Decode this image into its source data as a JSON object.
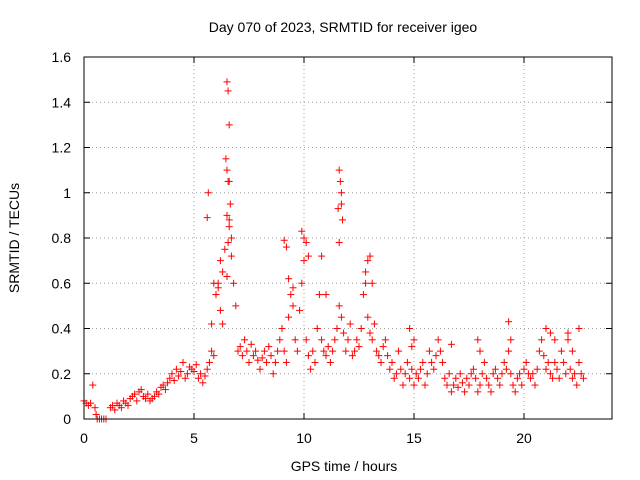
{
  "chart_data": {
    "type": "scatter",
    "title": "Day 070 of 2023, SRMTID for receiver igeo",
    "xlabel": "GPS time / hours",
    "ylabel": "SRMTID / TECUs",
    "xlim": [
      0,
      24
    ],
    "ylim": [
      0,
      1.6
    ],
    "xticks": [
      0,
      5,
      10,
      15,
      20
    ],
    "xtick_labels": [
      "0",
      "5",
      "10",
      "15",
      "20"
    ],
    "yticks": [
      0,
      0.2,
      0.4,
      0.6,
      0.8,
      1,
      1.2,
      1.4,
      1.6
    ],
    "ytick_labels": [
      "0",
      "0.2",
      "0.4",
      "0.6",
      "0.8",
      "1",
      "1.2",
      "1.4",
      "1.6"
    ],
    "grid": true,
    "marker": "+",
    "color": "#ff0000",
    "series": [
      {
        "name": "SRMTID",
        "x": [
          0.0,
          0.1,
          0.2,
          0.3,
          0.4,
          0.5,
          0.55,
          0.6,
          0.7,
          0.8,
          0.9,
          1.0,
          1.2,
          1.3,
          1.4,
          1.5,
          1.6,
          1.7,
          1.8,
          1.9,
          2.0,
          2.1,
          2.2,
          2.3,
          2.4,
          2.5,
          2.6,
          2.7,
          2.8,
          2.9,
          3.0,
          3.1,
          3.2,
          3.3,
          3.4,
          3.5,
          3.6,
          3.7,
          3.8,
          3.9,
          4.0,
          4.1,
          4.2,
          4.3,
          4.4,
          4.5,
          4.6,
          4.7,
          4.8,
          4.9,
          5.0,
          5.1,
          5.2,
          5.3,
          5.4,
          5.5,
          5.6,
          5.7,
          5.8,
          5.9,
          6.0,
          6.1,
          6.2,
          6.3,
          6.4,
          6.5,
          6.55,
          6.6,
          6.7,
          6.8,
          6.9,
          7.0,
          7.1,
          7.2,
          7.3,
          7.4,
          7.5,
          7.6,
          7.7,
          7.8,
          7.9,
          8.0,
          8.1,
          8.2,
          8.3,
          8.4,
          8.5,
          8.6,
          8.7,
          8.8,
          8.9,
          9.0,
          9.1,
          9.2,
          9.3,
          9.4,
          9.5,
          9.6,
          9.7,
          9.8,
          9.9,
          10.0,
          10.1,
          10.2,
          10.3,
          10.4,
          10.5,
          10.6,
          10.7,
          10.8,
          10.9,
          11.0,
          11.1,
          11.2,
          11.3,
          11.4,
          11.5,
          11.6,
          11.7,
          11.8,
          11.9,
          12.0,
          12.1,
          12.2,
          12.3,
          12.4,
          12.5,
          12.6,
          12.7,
          12.8,
          12.9,
          13.0,
          13.1,
          13.2,
          13.3,
          13.4,
          13.5,
          13.6,
          13.7,
          13.8,
          13.9,
          14.0,
          14.1,
          14.2,
          14.3,
          14.4,
          14.5,
          14.6,
          14.7,
          14.8,
          14.9,
          15.0,
          15.1,
          15.2,
          15.3,
          15.4,
          15.5,
          15.6,
          15.7,
          15.8,
          15.9,
          16.0,
          16.1,
          16.2,
          16.3,
          16.4,
          16.5,
          16.6,
          16.7,
          16.8,
          16.9,
          17.0,
          17.1,
          17.2,
          17.3,
          17.4,
          17.5,
          17.6,
          17.7,
          17.8,
          17.9,
          18.0,
          18.1,
          18.2,
          18.3,
          18.4,
          18.5,
          18.6,
          18.7,
          18.8,
          18.9,
          19.0,
          19.1,
          19.2,
          19.3,
          19.4,
          19.5,
          19.6,
          19.7,
          19.8,
          19.9,
          20.0,
          20.1,
          20.2,
          20.3,
          20.4,
          20.5,
          20.6,
          20.7,
          20.8,
          20.9,
          21.0,
          21.1,
          21.2,
          21.3,
          21.4,
          21.5,
          21.6,
          21.7,
          21.8,
          21.9,
          22.0,
          22.1,
          22.2,
          22.3,
          22.4,
          22.5,
          22.6,
          22.7,
          6.5,
          6.55,
          6.6,
          6.45,
          6.5,
          6.6,
          6.65,
          6.6,
          6.55,
          6.7,
          6.5,
          5.6,
          5.65,
          5.8,
          5.9,
          6.0,
          6.1,
          6.2,
          6.3,
          11.6,
          11.65,
          11.7,
          11.55,
          11.7,
          11.6,
          11.75,
          9.9,
          10.0,
          10.1,
          10.2,
          9.1,
          9.2,
          9.3,
          9.5,
          10.8,
          11.0,
          12.9,
          13.0,
          13.1,
          12.8,
          21.0,
          21.2,
          21.4,
          22.0,
          22.2,
          22.5,
          19.3,
          19.4,
          17.9,
          18.0,
          16.7,
          14.8,
          14.9,
          15.0
        ],
        "y": [
          0.08,
          0.07,
          0.06,
          0.07,
          0.15,
          0.05,
          0.02,
          0.0,
          0.0,
          0.0,
          0.0,
          0.0,
          0.05,
          0.06,
          0.04,
          0.07,
          0.06,
          0.05,
          0.08,
          0.07,
          0.06,
          0.09,
          0.1,
          0.11,
          0.08,
          0.12,
          0.13,
          0.1,
          0.09,
          0.11,
          0.08,
          0.09,
          0.1,
          0.12,
          0.11,
          0.14,
          0.15,
          0.13,
          0.16,
          0.18,
          0.2,
          0.17,
          0.22,
          0.19,
          0.21,
          0.25,
          0.18,
          0.2,
          0.23,
          0.22,
          0.21,
          0.24,
          0.18,
          0.2,
          0.16,
          0.19,
          0.22,
          0.25,
          0.3,
          0.28,
          0.55,
          0.6,
          0.7,
          0.65,
          0.75,
          0.9,
          1.05,
          0.85,
          0.8,
          0.6,
          0.5,
          0.3,
          0.32,
          0.28,
          0.35,
          0.3,
          0.25,
          0.33,
          0.28,
          0.3,
          0.26,
          0.22,
          0.27,
          0.3,
          0.25,
          0.32,
          0.28,
          0.2,
          0.25,
          0.3,
          0.35,
          0.4,
          0.3,
          0.25,
          0.45,
          0.55,
          0.5,
          0.35,
          0.3,
          0.48,
          0.6,
          0.7,
          0.35,
          0.28,
          0.22,
          0.3,
          0.25,
          0.4,
          0.55,
          0.35,
          0.3,
          0.28,
          0.32,
          0.25,
          0.3,
          0.35,
          0.4,
          0.5,
          0.45,
          0.38,
          0.3,
          0.35,
          0.42,
          0.28,
          0.3,
          0.35,
          0.32,
          0.4,
          0.55,
          0.6,
          0.45,
          0.38,
          0.35,
          0.42,
          0.3,
          0.28,
          0.25,
          0.32,
          0.35,
          0.28,
          0.22,
          0.25,
          0.18,
          0.2,
          0.3,
          0.22,
          0.15,
          0.2,
          0.25,
          0.18,
          0.22,
          0.15,
          0.2,
          0.18,
          0.22,
          0.25,
          0.15,
          0.2,
          0.3,
          0.25,
          0.22,
          0.28,
          0.35,
          0.3,
          0.25,
          0.18,
          0.15,
          0.2,
          0.12,
          0.15,
          0.18,
          0.14,
          0.2,
          0.16,
          0.12,
          0.18,
          0.15,
          0.2,
          0.22,
          0.18,
          0.12,
          0.15,
          0.2,
          0.25,
          0.18,
          0.15,
          0.12,
          0.2,
          0.22,
          0.18,
          0.15,
          0.2,
          0.25,
          0.22,
          0.3,
          0.2,
          0.15,
          0.12,
          0.18,
          0.2,
          0.15,
          0.22,
          0.25,
          0.2,
          0.18,
          0.2,
          0.15,
          0.22,
          0.3,
          0.35,
          0.28,
          0.22,
          0.25,
          0.2,
          0.18,
          0.25,
          0.22,
          0.18,
          0.3,
          0.25,
          0.2,
          0.35,
          0.22,
          0.18,
          0.2,
          0.15,
          0.25,
          0.2,
          0.18,
          1.49,
          1.45,
          1.3,
          1.15,
          1.1,
          1.05,
          0.95,
          0.88,
          0.78,
          0.72,
          0.63,
          0.89,
          1.0,
          0.42,
          0.6,
          0.55,
          0.58,
          0.48,
          0.42,
          1.1,
          1.05,
          1.0,
          0.93,
          0.95,
          0.78,
          0.88,
          0.83,
          0.8,
          0.78,
          0.72,
          0.79,
          0.76,
          0.62,
          0.58,
          0.72,
          0.55,
          0.7,
          0.72,
          0.6,
          0.65,
          0.4,
          0.38,
          0.35,
          0.38,
          0.3,
          0.4,
          0.43,
          0.35,
          0.35,
          0.3,
          0.33,
          0.4,
          0.32,
          0.35
        ]
      }
    ]
  }
}
